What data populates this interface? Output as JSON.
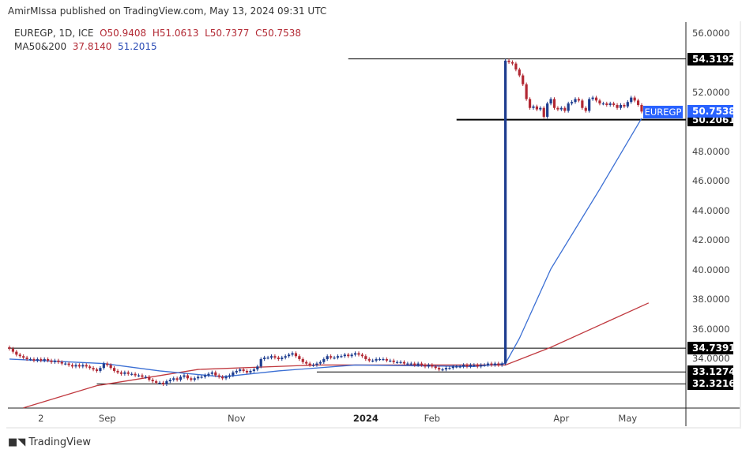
{
  "header": {
    "published": "AmirMIssa published on TradingView.com, May 13, 2024 09:31 UTC"
  },
  "legend": {
    "symbol": "EUREGP, 1D, ICE",
    "open": "O50.9408",
    "high": "H51.0613",
    "low": "L50.7377",
    "close": "C50.7538",
    "ma_label": "MA50&200",
    "ma200": "37.8140",
    "ma50": "51.2015"
  },
  "footer": {
    "brand": "TradingView",
    "logo": "TV"
  },
  "colors": {
    "up": "#1e3d8f",
    "down": "#b22833",
    "ma50": "#3b6fd4",
    "ma200": "#c0393f",
    "accent": "#2962ff"
  },
  "chart_data": {
    "type": "candlestick",
    "symbol": "EUREGP",
    "ylim": [
      30.7,
      57.2
    ],
    "y_ticks": [
      "56.0000",
      "52.0000",
      "48.0000",
      "46.0000",
      "44.0000",
      "42.0000",
      "40.0000",
      "38.0000",
      "36.0000",
      "34.0000"
    ],
    "y_tick_values": [
      56,
      52,
      48,
      46,
      44,
      42,
      40,
      38,
      36,
      34
    ],
    "x_ticks": [
      {
        "label": "2",
        "bar": 9
      },
      {
        "label": "Sep",
        "bar": 28
      },
      {
        "label": "Nov",
        "bar": 65
      },
      {
        "label": "2024",
        "bar": 102,
        "bold": true
      },
      {
        "label": "Feb",
        "bar": 121
      },
      {
        "label": "Apr",
        "bar": 158
      },
      {
        "label": "May",
        "bar": 177
      }
    ],
    "closes": [
      34.7,
      34.5,
      34.3,
      34.2,
      34.1,
      34.0,
      34.0,
      33.9,
      34.0,
      33.9,
      34.0,
      33.9,
      33.8,
      33.9,
      33.8,
      33.7,
      33.7,
      33.6,
      33.5,
      33.6,
      33.5,
      33.6,
      33.5,
      33.4,
      33.3,
      33.2,
      33.4,
      33.7,
      33.6,
      33.4,
      33.2,
      33.1,
      33.0,
      33.1,
      33.0,
      33.0,
      32.9,
      32.9,
      32.8,
      32.8,
      32.6,
      32.5,
      32.4,
      32.4,
      32.3,
      32.5,
      32.6,
      32.7,
      32.6,
      32.8,
      32.9,
      32.7,
      32.6,
      32.7,
      32.8,
      32.8,
      32.9,
      33.0,
      33.1,
      32.9,
      32.8,
      32.7,
      32.8,
      32.9,
      33.1,
      33.2,
      33.3,
      33.2,
      33.1,
      33.2,
      33.3,
      33.5,
      34.0,
      34.1,
      34.1,
      34.2,
      34.1,
      34.0,
      34.1,
      34.2,
      34.3,
      34.4,
      34.2,
      34.0,
      33.8,
      33.7,
      33.6,
      33.6,
      33.7,
      33.8,
      34.0,
      34.2,
      34.1,
      34.1,
      34.2,
      34.2,
      34.3,
      34.2,
      34.3,
      34.4,
      34.3,
      34.2,
      34.0,
      33.9,
      33.9,
      34.0,
      34.0,
      34.0,
      33.9,
      33.9,
      33.8,
      33.8,
      33.8,
      33.7,
      33.7,
      33.7,
      33.6,
      33.7,
      33.6,
      33.5,
      33.6,
      33.5,
      33.4,
      33.3,
      33.3,
      33.4,
      33.4,
      33.5,
      33.5,
      33.5,
      33.6,
      33.5,
      33.6,
      33.6,
      33.5,
      33.6,
      33.6,
      33.7,
      33.6,
      33.7,
      33.6,
      33.7,
      54.2,
      54.1,
      54.0,
      53.6,
      53.2,
      52.6,
      51.6,
      51.0,
      51.1,
      50.9,
      51.0,
      50.4,
      51.3,
      51.6,
      51.0,
      50.9,
      51.0,
      50.8,
      51.3,
      51.4,
      51.6,
      51.5,
      51.0,
      50.8,
      51.6,
      51.7,
      51.5,
      51.3,
      51.3,
      51.2,
      51.3,
      51.2,
      51.0,
      51.2,
      51.1,
      51.4,
      51.7,
      51.5,
      51.2,
      50.7538
    ],
    "ma50": [
      [
        0,
        34.0
      ],
      [
        27,
        33.7
      ],
      [
        43,
        33.2
      ],
      [
        61,
        32.8
      ],
      [
        77,
        33.2
      ],
      [
        99,
        33.6
      ],
      [
        133,
        33.5
      ],
      [
        142,
        33.7
      ],
      [
        146,
        35.4
      ],
      [
        155,
        40.1
      ],
      [
        169,
        45.5
      ],
      [
        181,
        50.3
      ]
    ],
    "ma200": [
      [
        4,
        30.7
      ],
      [
        25,
        32.2
      ],
      [
        54,
        33.3
      ],
      [
        88,
        33.6
      ],
      [
        142,
        33.6
      ],
      [
        155,
        34.8
      ],
      [
        183,
        37.8
      ]
    ],
    "levels": [
      {
        "label": "54.3192",
        "value": 54.3192,
        "from_bar": 97
      },
      {
        "label": "50.2061",
        "value": 50.2061,
        "from_bar": 128,
        "thick": true
      },
      {
        "label": "34.7391",
        "value": 34.7391,
        "from_bar": -1
      },
      {
        "label": "33.1274",
        "value": 33.1274,
        "from_bar": 88
      },
      {
        "label": "32.3216",
        "value": 32.3216,
        "from_bar": 25
      }
    ],
    "last_price": {
      "symbol": "EUREGP",
      "label": "50.7538",
      "value": 50.7538
    }
  }
}
